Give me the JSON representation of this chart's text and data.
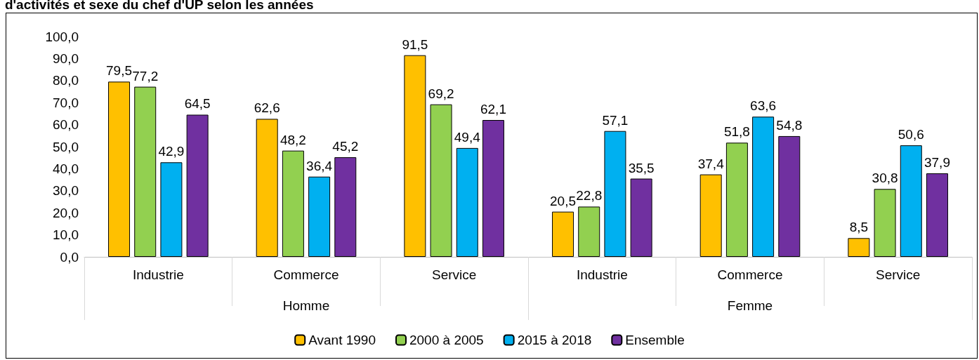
{
  "chart_data": {
    "type": "bar",
    "title": "d'activités et sexe du chef d'UP selon les années",
    "categories": [
      "Industrie",
      "Commerce",
      "Service",
      "Industrie",
      "Commerce",
      "Service"
    ],
    "annotations": [
      "Homme",
      "Femme"
    ],
    "series": [
      {
        "name": "Avant 1990",
        "color": "#ffc000",
        "values": [
          79.5,
          62.6,
          91.5,
          20.5,
          37.4,
          8.5
        ],
        "value_labels": [
          "79,5",
          "62,6",
          "91,5",
          "20,5",
          "37,4",
          "8,5"
        ]
      },
      {
        "name": "2000 à 2005",
        "color": "#92d050",
        "values": [
          77.2,
          48.2,
          69.2,
          22.8,
          51.8,
          30.8
        ],
        "value_labels": [
          "77,2",
          "48,2",
          "69,2",
          "22,8",
          "51,8",
          "30,8"
        ]
      },
      {
        "name": "2015 à 2018",
        "color": "#00b0f0",
        "values": [
          42.9,
          36.4,
          49.4,
          57.1,
          63.6,
          50.6
        ],
        "value_labels": [
          "42,9",
          "36,4",
          "49,4",
          "57,1",
          "63,6",
          "50,6"
        ]
      },
      {
        "name": "Ensemble",
        "color": "#7030a0",
        "values": [
          64.5,
          45.2,
          62.1,
          35.5,
          54.8,
          37.9
        ],
        "value_labels": [
          "64,5",
          "45,2",
          "62,1",
          "35,5",
          "54,8",
          "37,9"
        ]
      }
    ],
    "ylim": [
      0,
      100
    ],
    "yticks": [
      {
        "value": 0,
        "label": "0,0"
      },
      {
        "value": 10,
        "label": "10,0"
      },
      {
        "value": 20,
        "label": "20,0"
      },
      {
        "value": 30,
        "label": "30,0"
      },
      {
        "value": 40,
        "label": "40,0"
      },
      {
        "value": 50,
        "label": "50,0"
      },
      {
        "value": 60,
        "label": "60,0"
      },
      {
        "value": 70,
        "label": "70,0"
      },
      {
        "value": 80,
        "label": "80,0"
      },
      {
        "value": 90,
        "label": "90,0"
      },
      {
        "value": 100,
        "label": "100,0"
      }
    ],
    "grid": false,
    "legend": "bottom"
  }
}
